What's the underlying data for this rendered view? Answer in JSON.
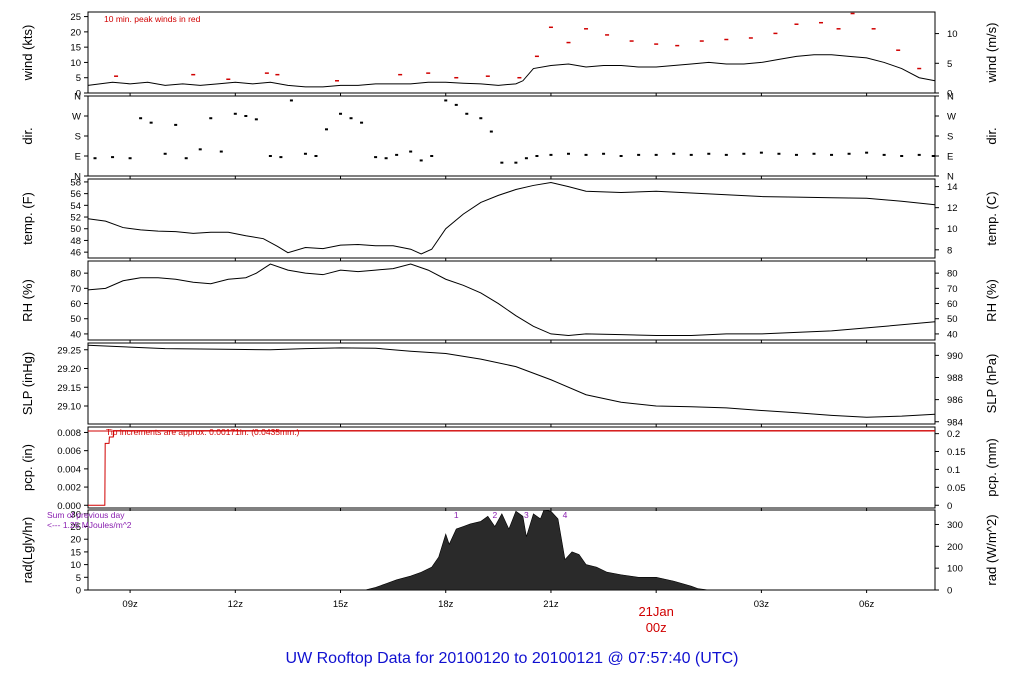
{
  "caption": "UW Rooftop Data for 20100120  to  20100121 @ 07:57:40  (UTC)",
  "colors": {
    "axis": "#000000",
    "peak": "#d00000",
    "precip": "#d00000",
    "note_rad": "#8a1fb0",
    "caption": "#1010d0",
    "rad_fill": "#2a2a2a"
  },
  "x_axis": {
    "range_hours_utc": [
      7.8,
      31.95
    ],
    "ticks": [
      {
        "hour": 9,
        "label": "09z"
      },
      {
        "hour": 12,
        "label": "12z"
      },
      {
        "hour": 15,
        "label": "15z"
      },
      {
        "hour": 18,
        "label": "18z"
      },
      {
        "hour": 21,
        "label": "21z"
      },
      {
        "hour": 24,
        "label": ""
      },
      {
        "hour": 27,
        "label": "03z"
      },
      {
        "hour": 30,
        "label": "06z"
      }
    ],
    "day_marker": {
      "hour": 24,
      "line1": "21Jan",
      "line2": "00z"
    }
  },
  "chart_data": [
    {
      "id": "wind",
      "type": "line",
      "ylabel": "wind (kts)",
      "ylabel_right": "wind (m/s)",
      "ylim": [
        0,
        26.5
      ],
      "left_ticks": [
        0,
        5,
        10,
        15,
        20,
        25
      ],
      "right_ticks": [
        {
          "pos": 0,
          "label": "0"
        },
        {
          "pos": 9.72,
          "label": "5"
        },
        {
          "pos": 19.44,
          "label": "10"
        }
      ],
      "note": "10 min. peak winds in red",
      "series": [
        {
          "name": "wind",
          "x": [
            7.8,
            8.5,
            9,
            9.5,
            10,
            10.5,
            11,
            11.5,
            12,
            12.5,
            13,
            13.5,
            14,
            14.5,
            15,
            15.5,
            16,
            16.5,
            17,
            17.5,
            18,
            18.5,
            19,
            19.5,
            20,
            20.2,
            20.5,
            21,
            21.5,
            22,
            22.5,
            23,
            23.5,
            24,
            24.5,
            25,
            25.5,
            26,
            26.5,
            27,
            27.5,
            28,
            28.5,
            29,
            29.5,
            30,
            30.5,
            31,
            31.5,
            31.95
          ],
          "y": [
            2.5,
            3.5,
            3,
            3.5,
            2.5,
            3,
            2.5,
            3,
            3.5,
            3,
            3.5,
            2.5,
            2,
            2,
            2.5,
            2.5,
            3,
            3,
            3,
            3.5,
            3.5,
            3.2,
            3,
            2.5,
            3,
            4,
            8,
            9,
            9.5,
            8.5,
            9,
            9,
            8.5,
            8.5,
            9,
            9.5,
            10,
            9.5,
            9.5,
            10,
            11,
            12,
            12.5,
            12.5,
            12,
            11.5,
            10,
            8,
            5,
            4
          ]
        },
        {
          "name": "peak",
          "x": [
            8.6,
            10.8,
            11.8,
            12.9,
            13.2,
            14.9,
            16.7,
            17.5,
            18.3,
            19.2,
            20.1,
            20.6,
            21,
            21.5,
            22,
            22.6,
            23.3,
            24,
            24.6,
            25.3,
            26,
            26.7,
            27.4,
            28,
            28.7,
            29.2,
            29.6,
            30.2,
            30.9,
            31.5
          ],
          "y": [
            5.5,
            6,
            4.5,
            6.5,
            6,
            4,
            6,
            6.5,
            5,
            5.5,
            5,
            12,
            21.5,
            16.5,
            21,
            19,
            17,
            16,
            15.5,
            17,
            17.5,
            18,
            19.5,
            22.5,
            23,
            21,
            26,
            21,
            14,
            8
          ]
        }
      ]
    },
    {
      "id": "dir",
      "type": "scatter",
      "ylabel": "dir.",
      "ylabel_right": "dir.",
      "ylim": [
        0,
        360
      ],
      "left_ticks": [
        {
          "pos": 0,
          "label": "N"
        },
        {
          "pos": 90,
          "label": "E"
        },
        {
          "pos": 180,
          "label": "S"
        },
        {
          "pos": 270,
          "label": "W"
        },
        {
          "pos": 360,
          "label": "N"
        }
      ],
      "right_ticks": [
        {
          "pos": 0,
          "label": "N"
        },
        {
          "pos": 90,
          "label": "E"
        },
        {
          "pos": 180,
          "label": "S"
        },
        {
          "pos": 270,
          "label": "W"
        },
        {
          "pos": 360,
          "label": "N"
        }
      ],
      "series": [
        {
          "name": "direction",
          "x": [
            8,
            8.5,
            9,
            9.3,
            9.6,
            10,
            10.3,
            10.6,
            11,
            11.3,
            11.6,
            12,
            12.3,
            12.6,
            13,
            13.3,
            13.6,
            14,
            14.3,
            14.6,
            15,
            15.3,
            15.6,
            16,
            16.3,
            16.6,
            17,
            17.3,
            17.6,
            18,
            18.3,
            18.6,
            19,
            19.3,
            19.6,
            20,
            20.3,
            20.6,
            21,
            21.5,
            22,
            22.5,
            23,
            23.5,
            24,
            24.5,
            25,
            25.5,
            26,
            26.5,
            27,
            27.5,
            28,
            28.5,
            29,
            29.5,
            30,
            30.5,
            31,
            31.5,
            31.9
          ],
          "y": [
            80,
            85,
            80,
            260,
            240,
            100,
            230,
            80,
            120,
            260,
            110,
            280,
            270,
            255,
            90,
            85,
            340,
            100,
            90,
            210,
            280,
            260,
            240,
            85,
            80,
            95,
            110,
            70,
            90,
            340,
            320,
            280,
            260,
            200,
            60,
            60,
            80,
            90,
            95,
            100,
            95,
            100,
            90,
            95,
            95,
            100,
            95,
            100,
            95,
            100,
            105,
            100,
            95,
            100,
            95,
            100,
            105,
            95,
            90,
            95,
            90
          ]
        }
      ]
    },
    {
      "id": "temp",
      "type": "line",
      "ylabel": "temp. (F)",
      "ylabel_right": "temp. (C)",
      "ylim": [
        45,
        58.5
      ],
      "left_ticks": [
        46,
        48,
        50,
        52,
        54,
        56,
        58
      ],
      "right_ticks": [
        {
          "pos": 46.4,
          "label": "8"
        },
        {
          "pos": 50,
          "label": "10"
        },
        {
          "pos": 53.6,
          "label": "12"
        },
        {
          "pos": 57.2,
          "label": "14"
        }
      ],
      "series": [
        {
          "name": "temperature",
          "x": [
            7.8,
            8.3,
            8.8,
            9.3,
            9.8,
            10.3,
            10.8,
            11.3,
            11.8,
            12.3,
            12.8,
            13.2,
            13.5,
            14,
            14.5,
            15,
            15.5,
            16,
            16.5,
            17,
            17.3,
            17.6,
            18,
            18.5,
            19,
            19.5,
            20,
            20.5,
            21,
            21.5,
            22,
            23,
            24,
            25,
            26,
            27,
            28,
            29,
            30,
            31,
            31.95
          ],
          "y": [
            51.7,
            51.3,
            50.2,
            49.8,
            49.6,
            49.5,
            49.2,
            49.4,
            49.4,
            48.8,
            48.3,
            47,
            45.9,
            46.8,
            46.6,
            47.2,
            47.3,
            47.1,
            47.1,
            46.5,
            45.7,
            46.5,
            50,
            52.5,
            54.5,
            55.7,
            56.7,
            57.4,
            57.9,
            57.2,
            56.4,
            56.2,
            56.4,
            56.1,
            55.8,
            55.5,
            55.4,
            55.3,
            55.2,
            54.7,
            54.1
          ]
        }
      ]
    },
    {
      "id": "rh",
      "type": "line",
      "ylabel": "RH (%)",
      "ylabel_right": "RH (%)",
      "ylim": [
        36,
        88
      ],
      "left_ticks": [
        40,
        50,
        60,
        70,
        80
      ],
      "right_ticks": [
        {
          "pos": 40,
          "label": "40"
        },
        {
          "pos": 50,
          "label": "50"
        },
        {
          "pos": 60,
          "label": "60"
        },
        {
          "pos": 70,
          "label": "70"
        },
        {
          "pos": 80,
          "label": "80"
        }
      ],
      "series": [
        {
          "name": "relative humidity",
          "x": [
            7.8,
            8.3,
            8.8,
            9.3,
            9.8,
            10.3,
            10.8,
            11.3,
            11.8,
            12.3,
            12.6,
            13,
            13.5,
            14,
            14.5,
            15,
            15.5,
            16,
            16.5,
            17,
            17.5,
            18,
            18.5,
            19,
            19.5,
            20,
            20.5,
            21,
            21.5,
            22,
            23,
            24,
            25,
            26,
            27,
            28,
            29,
            30,
            31,
            31.95
          ],
          "y": [
            69,
            70,
            75,
            77,
            77,
            76,
            74,
            73,
            76,
            77,
            80,
            86,
            82,
            80,
            79,
            82,
            81,
            82,
            83,
            86,
            82,
            76,
            72,
            67,
            60,
            52,
            45,
            40,
            39,
            40,
            39.5,
            39,
            39,
            40,
            40,
            41,
            42,
            44,
            46,
            48
          ]
        }
      ]
    },
    {
      "id": "slp",
      "type": "line",
      "ylabel": "SLP (inHg)",
      "ylabel_right": "SLP (hPa)",
      "ylim": [
        29.052,
        29.268
      ],
      "left_ticks": [
        {
          "pos": 29.1,
          "label": "29.10"
        },
        {
          "pos": 29.15,
          "label": "29.15"
        },
        {
          "pos": 29.2,
          "label": "29.20"
        },
        {
          "pos": 29.25,
          "label": "29.25"
        }
      ],
      "right_ticks": [
        {
          "pos": 29.058,
          "label": "984"
        },
        {
          "pos": 29.117,
          "label": "986"
        },
        {
          "pos": 29.176,
          "label": "988"
        },
        {
          "pos": 29.235,
          "label": "990"
        }
      ],
      "series": [
        {
          "name": "sea level pressure",
          "x": [
            7.8,
            9,
            10,
            11,
            12,
            13,
            14,
            15,
            16,
            17,
            18,
            19,
            20,
            21,
            22,
            23,
            24,
            25,
            26,
            27,
            28,
            29,
            30,
            31,
            31.95
          ],
          "y": [
            29.262,
            29.257,
            29.253,
            29.252,
            29.251,
            29.25,
            29.253,
            29.255,
            29.254,
            29.246,
            29.24,
            29.225,
            29.205,
            29.17,
            29.13,
            29.11,
            29.1,
            29.098,
            29.095,
            29.088,
            29.082,
            29.075,
            29.07,
            29.073,
            29.078
          ]
        }
      ]
    },
    {
      "id": "pcp",
      "type": "line",
      "ylabel": "pcp. (in)",
      "ylabel_right": "pcp. (mm)",
      "ylim": [
        -0.0003,
        0.0086
      ],
      "left_ticks": [
        {
          "pos": 0,
          "label": "0.000"
        },
        {
          "pos": 0.002,
          "label": "0.002"
        },
        {
          "pos": 0.004,
          "label": "0.004"
        },
        {
          "pos": 0.006,
          "label": "0.006"
        },
        {
          "pos": 0.008,
          "label": "0.008"
        }
      ],
      "right_ticks": [
        {
          "pos": 0,
          "label": "0"
        },
        {
          "pos": 0.00197,
          "label": "0.05"
        },
        {
          "pos": 0.00394,
          "label": "0.1"
        },
        {
          "pos": 0.00591,
          "label": "0.15"
        },
        {
          "pos": 0.00787,
          "label": "0.2"
        }
      ],
      "note": "Tip increments are approx. 0.00171in. (0.0435mm.)",
      "series": [
        {
          "name": "precipitation",
          "x": [
            7.8,
            8.28,
            8.29,
            8.4,
            8.41,
            8.52,
            8.53,
            31.95
          ],
          "y": [
            0,
            0,
            0.0068,
            0.0068,
            0.0075,
            0.0075,
            0.0082,
            0.0082
          ]
        }
      ]
    },
    {
      "id": "rad",
      "type": "area",
      "ylabel": "rad(Lgly/hr)",
      "ylabel_right": "rad (W/m^2)",
      "ylim": [
        0,
        31.5
      ],
      "left_ticks": [
        0,
        5,
        10,
        15,
        20,
        25,
        30
      ],
      "right_ticks": [
        {
          "pos": 0,
          "label": "0"
        },
        {
          "pos": 8.6,
          "label": "100"
        },
        {
          "pos": 17.2,
          "label": "200"
        },
        {
          "pos": 25.8,
          "label": "300"
        }
      ],
      "note_lines": [
        "Sum of previous day",
        "<--- 1.25 MJoules/m^2"
      ],
      "note_top_labels": [
        {
          "x": 18.3,
          "label": "1"
        },
        {
          "x": 19.4,
          "label": "2"
        },
        {
          "x": 20.3,
          "label": "3"
        },
        {
          "x": 21.4,
          "label": "4"
        }
      ],
      "series": [
        {
          "name": "solar radiation",
          "x": [
            15.7,
            16,
            16.3,
            16.6,
            17,
            17.3,
            17.6,
            17.8,
            18,
            18.1,
            18.3,
            18.5,
            18.7,
            19,
            19.2,
            19.4,
            19.6,
            19.8,
            20,
            20.2,
            20.3,
            20.5,
            20.7,
            20.8,
            21,
            21.2,
            21.4,
            21.6,
            21.8,
            22,
            22.3,
            22.6,
            23,
            23.5,
            24,
            24.5,
            25,
            25.2,
            25.5
          ],
          "y": [
            0,
            1,
            2.5,
            4,
            5.5,
            7,
            9,
            13,
            22,
            18,
            24,
            25,
            26,
            27,
            29,
            25,
            30,
            24,
            31,
            29,
            21,
            30,
            28,
            33,
            31,
            28,
            12,
            15,
            14,
            10,
            9,
            7,
            6,
            5,
            5,
            3.5,
            1.5,
            0.5,
            0
          ]
        }
      ]
    }
  ]
}
